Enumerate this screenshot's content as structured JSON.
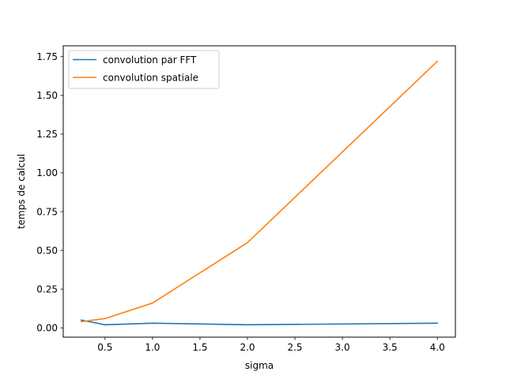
{
  "chart_data": {
    "type": "line",
    "title": "",
    "xlabel": "sigma",
    "ylabel": "temps de calcul",
    "xlim": [
      0.06,
      4.19
    ],
    "ylim": [
      -0.06,
      1.82
    ],
    "xticks": [
      0.5,
      1.0,
      1.5,
      2.0,
      2.5,
      3.0,
      3.5,
      4.0
    ],
    "xtick_labels": [
      "0.5",
      "1.0",
      "1.5",
      "2.0",
      "2.5",
      "3.0",
      "3.5",
      "4.0"
    ],
    "yticks": [
      0.0,
      0.25,
      0.5,
      0.75,
      1.0,
      1.25,
      1.5,
      1.75
    ],
    "ytick_labels": [
      "0.00",
      "0.25",
      "0.50",
      "0.75",
      "1.00",
      "1.25",
      "1.50",
      "1.75"
    ],
    "grid": false,
    "legend_position": "top-left",
    "series": [
      {
        "name": "convolution par FFT",
        "color": "#1f77b4",
        "x": [
          0.25,
          0.5,
          1.0,
          2.0,
          4.0
        ],
        "y": [
          0.05,
          0.02,
          0.03,
          0.02,
          0.03
        ]
      },
      {
        "name": "convolution spatiale",
        "color": "#ff7f0e",
        "x": [
          0.25,
          0.5,
          1.0,
          2.0,
          4.0
        ],
        "y": [
          0.04,
          0.06,
          0.16,
          0.55,
          1.72
        ]
      }
    ]
  }
}
